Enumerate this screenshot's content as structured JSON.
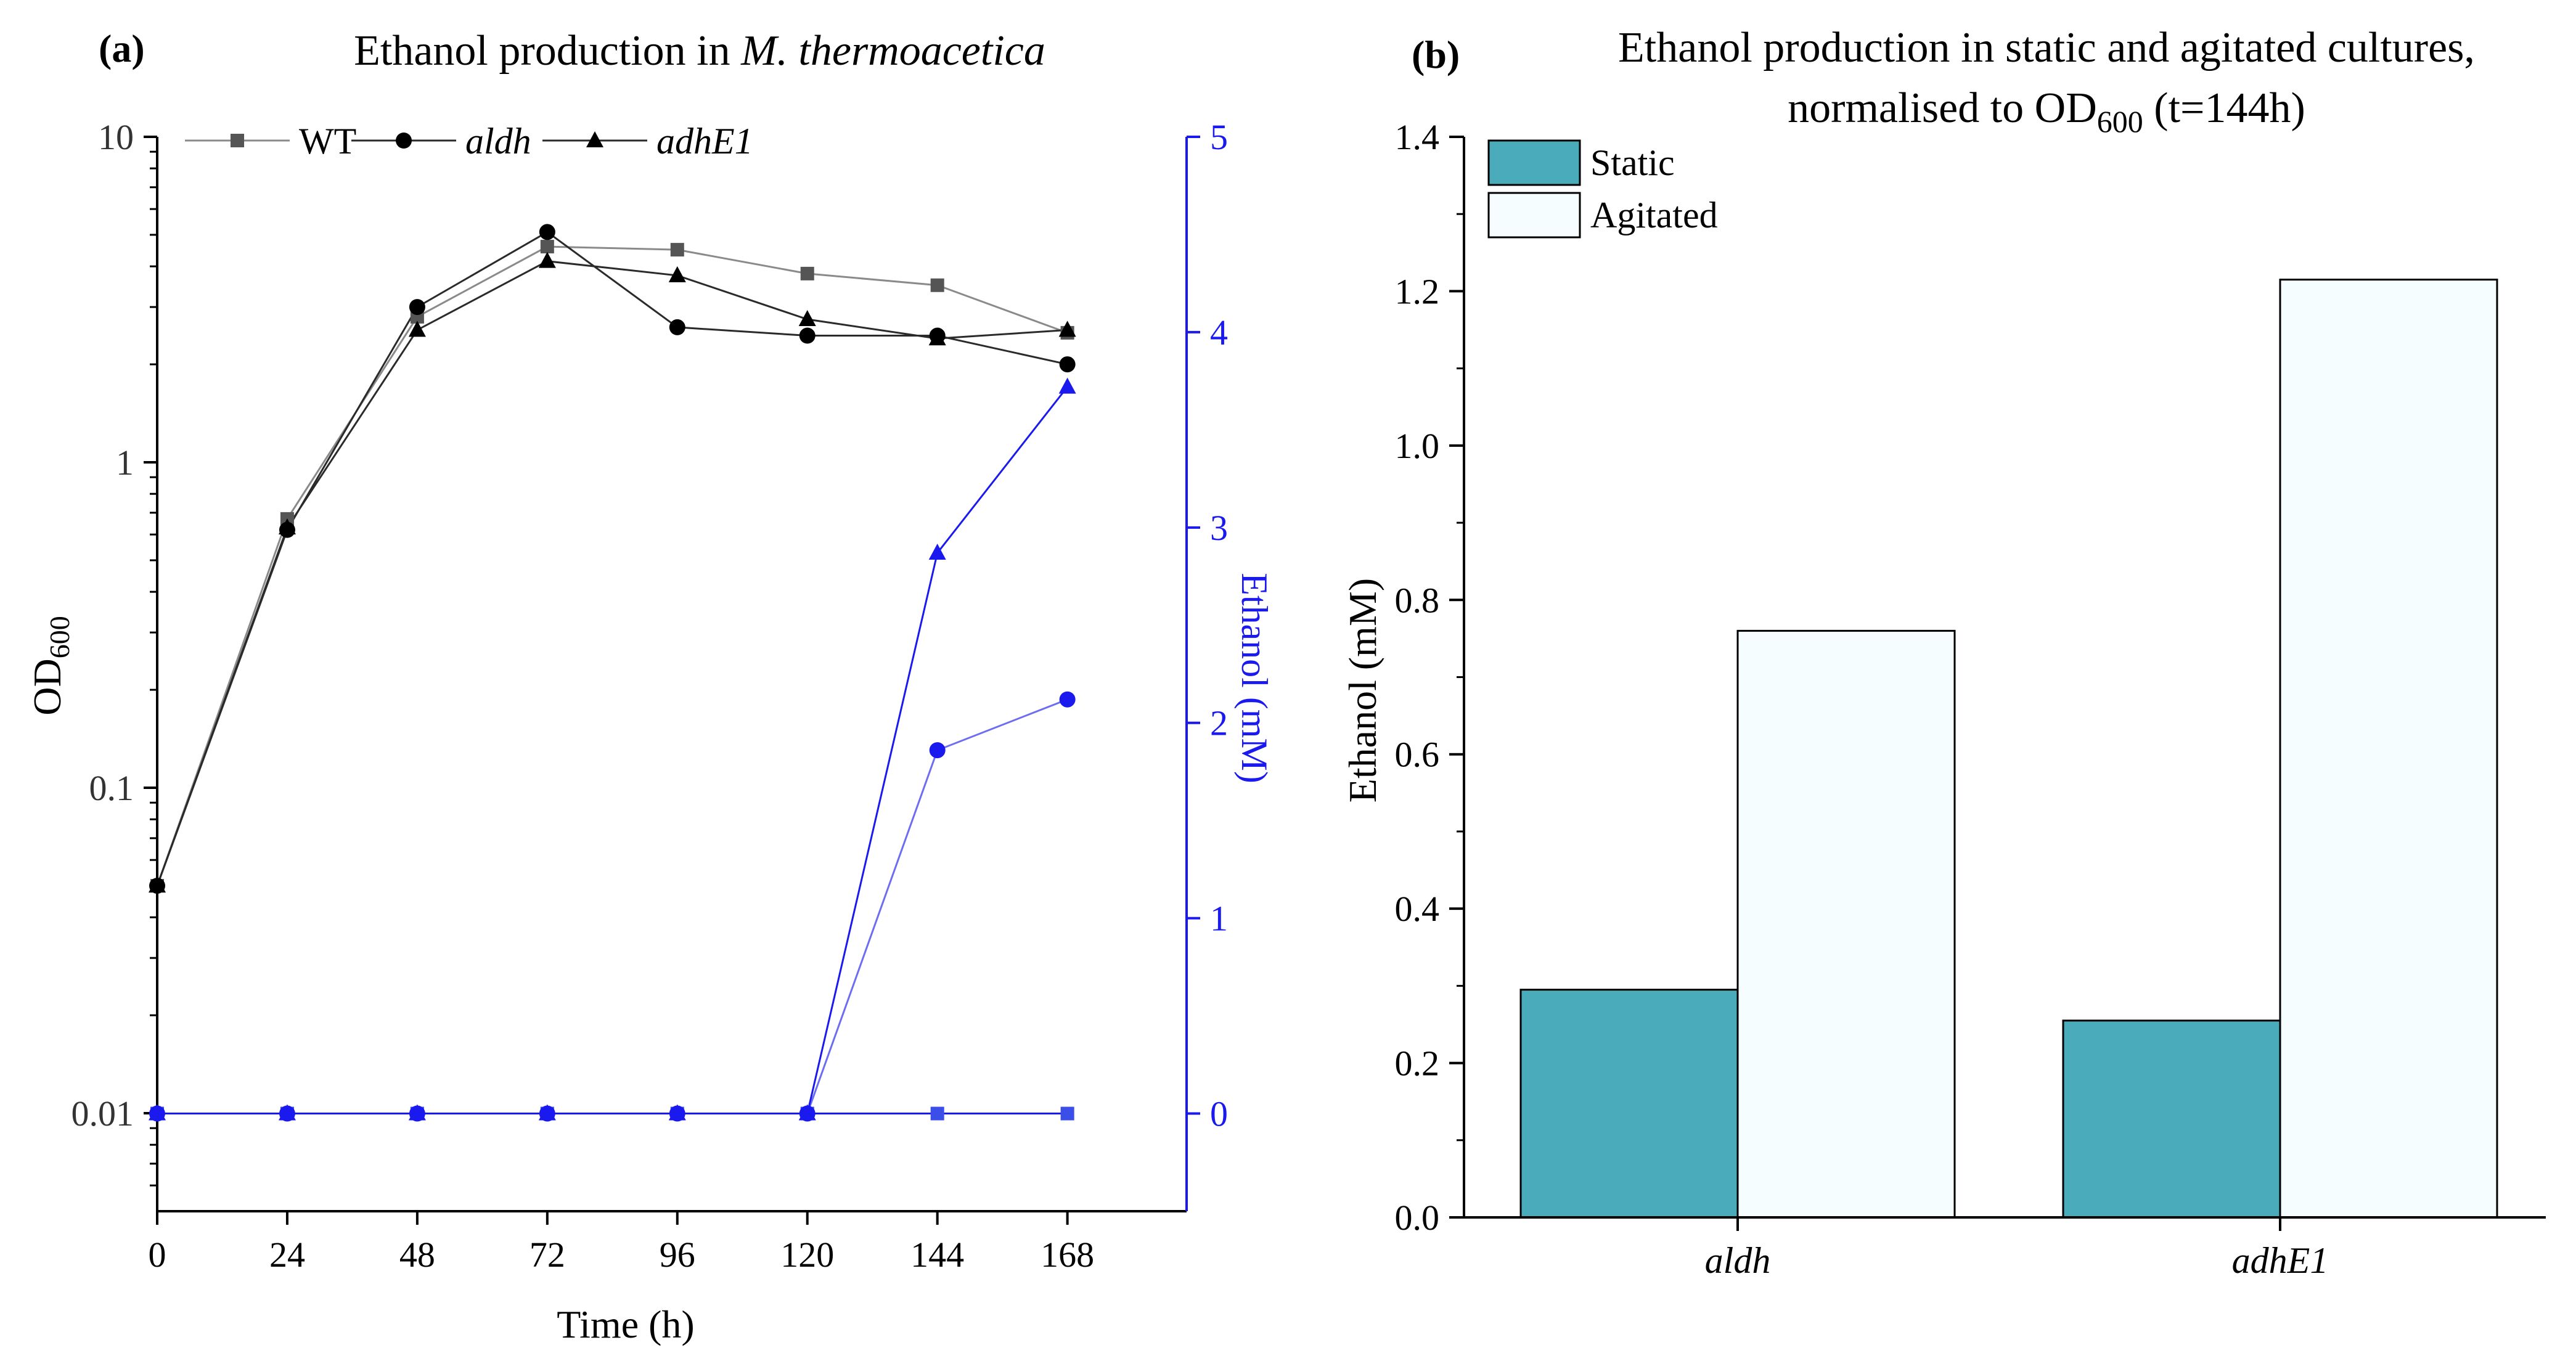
{
  "colors": {
    "axis": "#000000",
    "wt": "#555555",
    "mutant": "#000000",
    "ethanol": "#1a1aee",
    "ethanol_light": "#6d6df2",
    "static_bar": "#4aabbb",
    "agitated_bar": "#f5fdff"
  },
  "chart_data": [
    {
      "panel": "(a)",
      "type": "line",
      "title": {
        "prefix": "Ethanol production in ",
        "italic": "M. thermoacetica"
      },
      "xlabel": "Time (h)",
      "ylabel": {
        "base": "OD",
        "sub": "600"
      },
      "y2label": "Ethanol (mM)",
      "xlim": [
        0,
        190
      ],
      "x_ticks": [
        0,
        24,
        48,
        72,
        96,
        120,
        144,
        168
      ],
      "ylim": [
        0.005,
        10
      ],
      "yscale": "log",
      "y_ticks": [
        0.01,
        0.1,
        1,
        10
      ],
      "y_tick_labels": [
        "0.01",
        "0.1",
        "1",
        "10"
      ],
      "y2lim": [
        -0.5,
        5
      ],
      "y2_ticks": [
        0,
        1,
        2,
        3,
        4,
        5
      ],
      "x": [
        0,
        24,
        48,
        72,
        96,
        120,
        144,
        168
      ],
      "legend": {
        "position": "top-left",
        "entries": [
          "WT",
          "aldh",
          "adhE1"
        ]
      },
      "od_series": [
        {
          "name": "WT",
          "marker": "square",
          "values": [
            0.05,
            0.67,
            2.8,
            4.6,
            4.5,
            3.8,
            3.5,
            2.5
          ]
        },
        {
          "name": "aldh",
          "marker": "circle",
          "values": [
            0.05,
            0.62,
            3.0,
            5.1,
            2.6,
            2.45,
            2.45,
            2.0
          ]
        },
        {
          "name": "adhE1",
          "marker": "triangle",
          "values": [
            0.05,
            0.63,
            2.55,
            4.15,
            3.75,
            2.75,
            2.4,
            2.55
          ]
        }
      ],
      "ethanol_series": [
        {
          "name": "WT",
          "marker": "square",
          "values": [
            0,
            0,
            0,
            0,
            0,
            0,
            0,
            0
          ]
        },
        {
          "name": "aldh",
          "marker": "circle",
          "values": [
            0,
            0,
            0,
            0,
            0,
            0,
            1.86,
            2.12
          ]
        },
        {
          "name": "adhE1",
          "marker": "triangle",
          "values": [
            0,
            0,
            0,
            0,
            0,
            0,
            2.87,
            3.72
          ]
        }
      ]
    },
    {
      "panel": "(b)",
      "type": "bar",
      "title_line1": "Ethanol production in static and agitated cultures,",
      "title_line2": {
        "pre": "normalised to OD",
        "sub": "600",
        "post": " (t=144h)"
      },
      "categories": [
        "aldh",
        "adhE1"
      ],
      "ylabel": "Ethanol (mM)",
      "ylim": [
        0,
        1.4
      ],
      "y_ticks": [
        0.0,
        0.2,
        0.4,
        0.6,
        0.8,
        1.0,
        1.2,
        1.4
      ],
      "y_tick_labels": [
        "0.0",
        "0.2",
        "0.4",
        "0.6",
        "0.8",
        "1.0",
        "1.2",
        "1.4"
      ],
      "legend": {
        "position": "top-left"
      },
      "series": [
        {
          "name": "Static",
          "values": [
            0.295,
            0.255
          ]
        },
        {
          "name": "Agitated",
          "values": [
            0.76,
            1.215
          ]
        }
      ]
    }
  ]
}
